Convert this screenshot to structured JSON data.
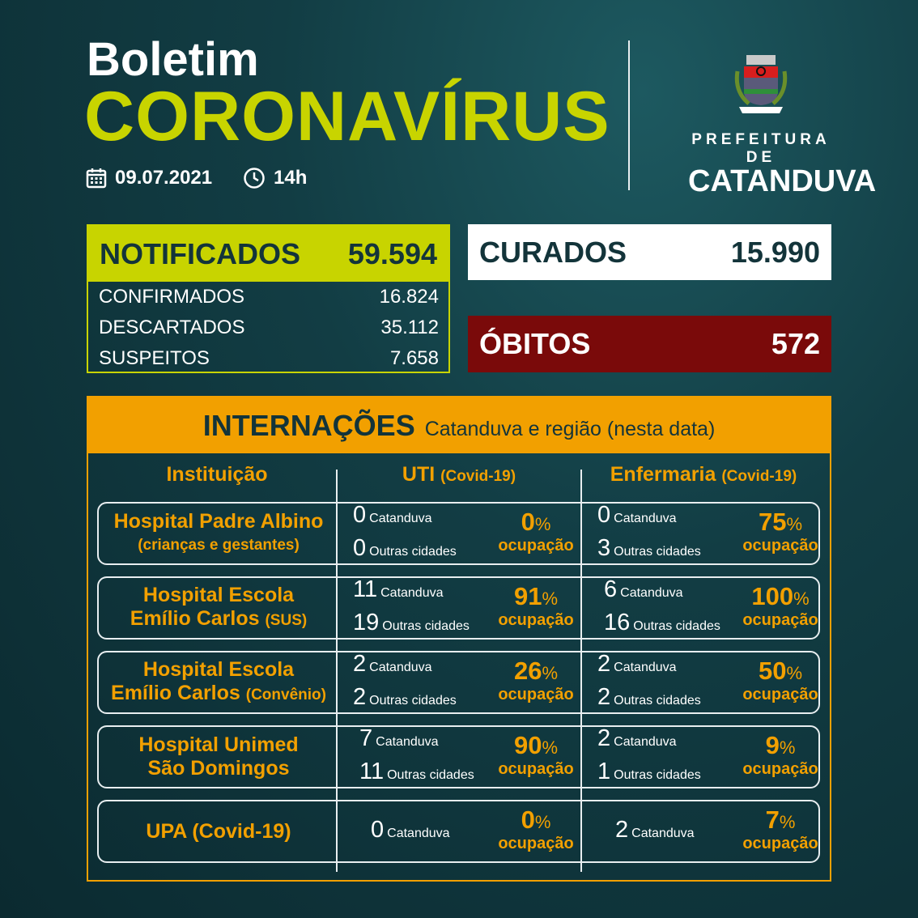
{
  "header": {
    "title_small": "Boletim",
    "title_big": "CORONAVÍRUS",
    "date": "09.07.2021",
    "time": "14h",
    "calendar_icon": "calendar-icon",
    "clock_icon": "clock-icon"
  },
  "logo": {
    "line1": "PREFEITURA DE",
    "line2": "CATANDUVA",
    "crest_text": "CATANDUVA"
  },
  "notificados": {
    "label": "NOTIFICADOS",
    "value": "59.594",
    "rows": [
      {
        "label": "CONFIRMADOS",
        "value": "16.824"
      },
      {
        "label": "DESCARTADOS",
        "value": "35.112"
      },
      {
        "label": "SUSPEITOS",
        "value": "7.658"
      }
    ]
  },
  "curados": {
    "label": "CURADOS",
    "value": "15.990"
  },
  "obitos": {
    "label": "ÓBITOS",
    "value": "572"
  },
  "colors": {
    "lime": "#c8d400",
    "orange": "#f2a000",
    "red": "#7a0a0a",
    "bg": "#123d44"
  },
  "internacoes": {
    "title": "INTERNAÇÕES",
    "subtitle": "Catanduva e região (nesta data)",
    "columns": {
      "inst": "Instituição",
      "uti": "UTI",
      "uti_sub": "(Covid-19)",
      "enf": "Enfermaria",
      "enf_sub": "(Covid-19)"
    },
    "occupancy_label": "ocupação",
    "rows": [
      {
        "name": "Hospital Padre Albino",
        "name2": "",
        "suffix": "(crianças e gestantes)",
        "uti": [
          {
            "n": "0",
            "l": "Catanduva"
          },
          {
            "n": "0",
            "l": "Outras cidades"
          }
        ],
        "uti_pct": "0",
        "enf": [
          {
            "n": "0",
            "l": "Catanduva"
          },
          {
            "n": "3",
            "l": "Outras cidades"
          }
        ],
        "enf_pct": "75"
      },
      {
        "name": "Hospital Escola",
        "name2": "Emílio Carlos",
        "suffix": "(SUS)",
        "uti": [
          {
            "n": "11",
            "l": "Catanduva"
          },
          {
            "n": "19",
            "l": "Outras cidades"
          }
        ],
        "uti_pct": "91",
        "enf": [
          {
            "n": "6",
            "l": "Catanduva"
          },
          {
            "n": "16",
            "l": "Outras cidades"
          }
        ],
        "enf_pct": "100"
      },
      {
        "name": "Hospital Escola",
        "name2": "Emílio Carlos",
        "suffix": "(Convênio)",
        "uti": [
          {
            "n": "2",
            "l": "Catanduva"
          },
          {
            "n": "2",
            "l": "Outras cidades"
          }
        ],
        "uti_pct": "26",
        "enf": [
          {
            "n": "2",
            "l": "Catanduva"
          },
          {
            "n": "2",
            "l": "Outras cidades"
          }
        ],
        "enf_pct": "50"
      },
      {
        "name": "Hospital Unimed",
        "name2": "São Domingos",
        "suffix": "",
        "uti": [
          {
            "n": "7",
            "l": "Catanduva"
          },
          {
            "n": "11",
            "l": "Outras cidades"
          }
        ],
        "uti_pct": "90",
        "enf": [
          {
            "n": "2",
            "l": "Catanduva"
          },
          {
            "n": "1",
            "l": "Outras cidades"
          }
        ],
        "enf_pct": "9"
      },
      {
        "name": "UPA (Covid-19)",
        "name2": "",
        "suffix": "",
        "uti": [
          {
            "n": "0",
            "l": "Catanduva"
          }
        ],
        "uti_pct": "0",
        "enf": [
          {
            "n": "2",
            "l": "Catanduva"
          }
        ],
        "enf_pct": "7"
      }
    ]
  }
}
